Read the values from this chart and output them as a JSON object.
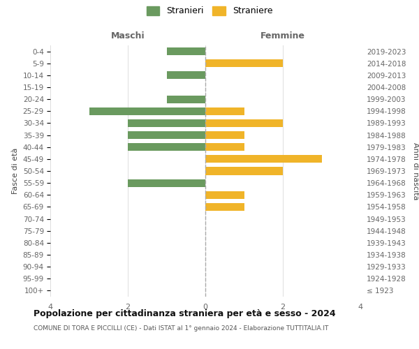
{
  "age_groups": [
    "100+",
    "95-99",
    "90-94",
    "85-89",
    "80-84",
    "75-79",
    "70-74",
    "65-69",
    "60-64",
    "55-59",
    "50-54",
    "45-49",
    "40-44",
    "35-39",
    "30-34",
    "25-29",
    "20-24",
    "15-19",
    "10-14",
    "5-9",
    "0-4"
  ],
  "birth_years": [
    "≤ 1923",
    "1924-1928",
    "1929-1933",
    "1934-1938",
    "1939-1943",
    "1944-1948",
    "1949-1953",
    "1954-1958",
    "1959-1963",
    "1964-1968",
    "1969-1973",
    "1974-1978",
    "1979-1983",
    "1984-1988",
    "1989-1993",
    "1994-1998",
    "1999-2003",
    "2004-2008",
    "2009-2013",
    "2014-2018",
    "2019-2023"
  ],
  "maschi": [
    0,
    0,
    0,
    0,
    0,
    0,
    0,
    0,
    0,
    2,
    0,
    0,
    2,
    2,
    2,
    3,
    1,
    0,
    1,
    0,
    1
  ],
  "femmine": [
    0,
    0,
    0,
    0,
    0,
    0,
    0,
    1,
    1,
    0,
    2,
    3,
    1,
    1,
    2,
    1,
    0,
    0,
    0,
    2,
    0
  ],
  "color_maschi": "#6a9a5f",
  "color_femmine": "#f0b429",
  "title": "Popolazione per cittadinanza straniera per età e sesso - 2024",
  "subtitle": "COMUNE DI TORA E PICCILLI (CE) - Dati ISTAT al 1° gennaio 2024 - Elaborazione TUTTITALIA.IT",
  "xlabel_left": "Maschi",
  "xlabel_right": "Femmine",
  "ylabel_left": "Fasce di età",
  "ylabel_right": "Anni di nascita",
  "legend_maschi": "Stranieri",
  "legend_femmine": "Straniere",
  "xlim": 4,
  "background_color": "#ffffff",
  "grid_color": "#dddddd"
}
